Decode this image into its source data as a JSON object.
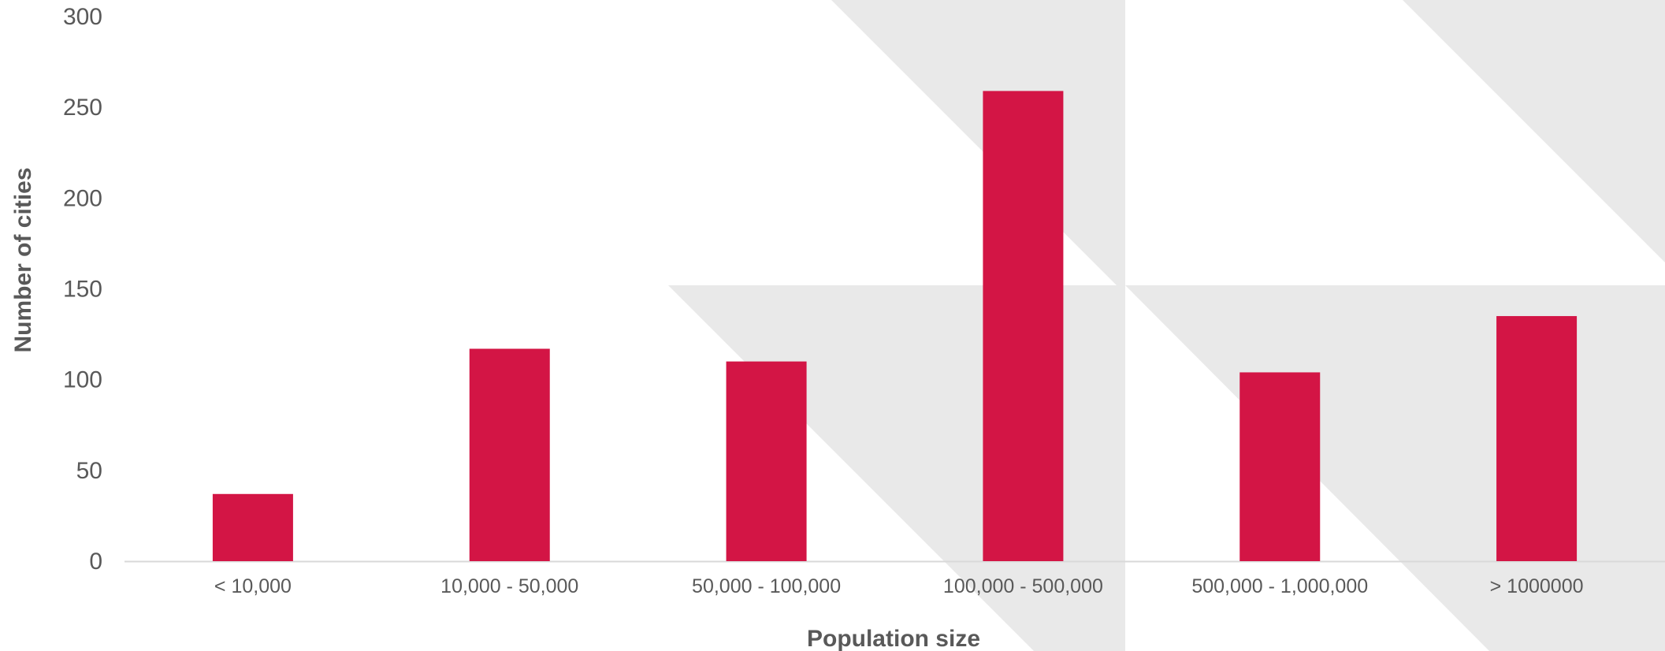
{
  "chart_data": {
    "type": "bar",
    "title": "",
    "xlabel": "Population size",
    "ylabel": "Number of cities",
    "categories": [
      "< 10,000",
      "10,000 - 50,000",
      "50,000 - 100,000",
      "100,000 - 500,000",
      "500,000 - 1,000,000",
      "> 1000000"
    ],
    "values": [
      37,
      117,
      110,
      259,
      104,
      135
    ],
    "ylim": [
      0,
      300
    ],
    "yticks": [
      0,
      50,
      100,
      150,
      200,
      250,
      300
    ],
    "grid": false,
    "legend": "none",
    "bar_color": "#d31545",
    "background_pattern_color": "#e9e9e9"
  }
}
